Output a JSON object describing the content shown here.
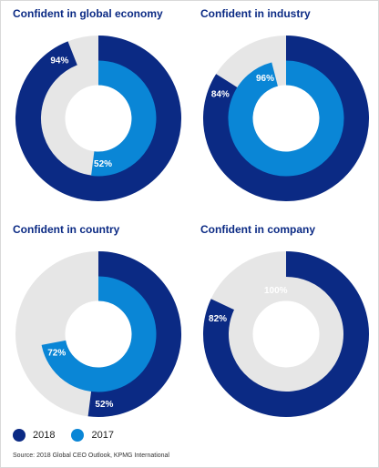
{
  "chart_data": [
    {
      "type": "donut",
      "title": "Confident in global economy",
      "series": [
        {
          "name": "2018",
          "value": 94,
          "label": "94%"
        },
        {
          "name": "2017",
          "value": 52,
          "label": "52%"
        }
      ]
    },
    {
      "type": "donut",
      "title": "Confident in industry",
      "series": [
        {
          "name": "2018",
          "value": 84,
          "label": "84%"
        },
        {
          "name": "2017",
          "value": 96,
          "label": "96%"
        }
      ]
    },
    {
      "type": "donut",
      "title": "Confident in country",
      "series": [
        {
          "name": "2018",
          "value": 52,
          "label": "52%"
        },
        {
          "name": "2017",
          "value": 72,
          "label": "72%"
        }
      ]
    },
    {
      "type": "donut",
      "title": "Confident in company",
      "series": [
        {
          "name": "2018",
          "value": 82,
          "label": "82%"
        },
        {
          "name": "2017",
          "value": 100,
          "label": "100%"
        }
      ]
    }
  ],
  "legend": [
    {
      "label": "2018",
      "color": "#0b2a84"
    },
    {
      "label": "2017",
      "color": "#0a86d6"
    }
  ],
  "colors": {
    "y2018": "#0b2a84",
    "y2017": "#0a86d6",
    "track": "#e6e6e6",
    "title": "#0b2a84"
  },
  "source": "Source: 2018 Global CEO Outlook, KPMG International"
}
